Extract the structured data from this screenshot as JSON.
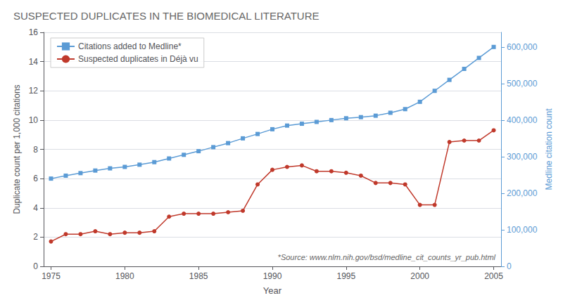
{
  "chart_data": {
    "type": "line",
    "title": "SUSPECTED DUPLICATES IN THE BIOMEDICAL LITERATURE",
    "xlabel": "Year",
    "ylabel": "Duplicate count per 1,000 citations",
    "y2label": "Medline citation count",
    "annotation": "*Source: www.nlm.nih.gov/bsd/medline_cit_counts_yr_pub.html",
    "x": [
      1975,
      1976,
      1977,
      1978,
      1979,
      1980,
      1981,
      1982,
      1983,
      1984,
      1985,
      1986,
      1987,
      1988,
      1989,
      1990,
      1991,
      1992,
      1993,
      1994,
      1995,
      1996,
      1997,
      1998,
      1999,
      2000,
      2001,
      2002,
      2003,
      2004,
      2005
    ],
    "series": [
      {
        "name": "Citations added to Medline*",
        "color": "#5b9bd5",
        "marker": "square",
        "axis": "y2",
        "values": [
          240000,
          248000,
          255000,
          262000,
          268000,
          272000,
          278000,
          285000,
          295000,
          305000,
          315000,
          326000,
          337000,
          350000,
          362000,
          375000,
          385000,
          390000,
          395000,
          400000,
          405000,
          408000,
          412000,
          420000,
          430000,
          450000,
          480000,
          510000,
          540000,
          570000,
          600000
        ]
      },
      {
        "name": "Suspected duplicates in Déjà vu",
        "color": "#c0392b",
        "marker": "circle",
        "values": [
          1.7,
          2.2,
          2.2,
          2.4,
          2.2,
          2.3,
          2.3,
          2.4,
          3.4,
          3.6,
          3.6,
          3.6,
          3.7,
          3.8,
          5.6,
          6.6,
          6.8,
          6.9,
          6.5,
          6.5,
          6.4,
          6.2,
          5.7,
          5.7,
          5.6,
          4.2,
          4.2,
          8.5,
          8.6,
          8.6,
          9.3
        ]
      }
    ],
    "xlim": [
      1974.5,
      2005.5
    ],
    "xticks": [
      1975,
      1980,
      1985,
      1990,
      1995,
      2000,
      2005
    ],
    "ylim": [
      0,
      16
    ],
    "yticks": [
      0,
      2,
      4,
      6,
      8,
      10,
      12,
      14,
      16
    ],
    "y2lim": [
      0,
      640000
    ],
    "y2ticks": [
      0,
      {
        "value": 100000,
        "label": "100,000"
      },
      {
        "value": 200000,
        "label": "200,000"
      },
      {
        "value": 300000,
        "label": "300,000"
      },
      {
        "value": 400000,
        "label": "400,000"
      },
      {
        "value": 500000,
        "label": "500,000"
      },
      {
        "value": 600000,
        "label": "600,000"
      }
    ],
    "grid": true,
    "legend": "upper left"
  }
}
